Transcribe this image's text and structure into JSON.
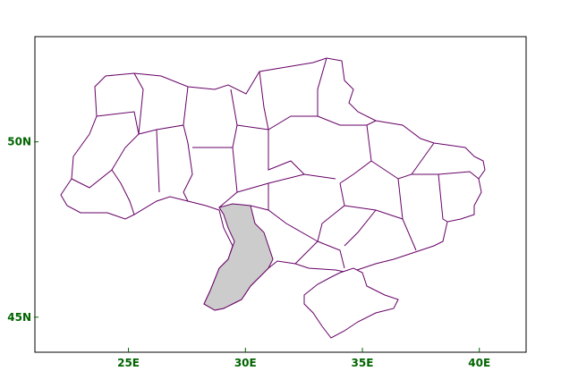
{
  "map": {
    "extent": {
      "lon": [
        21,
        42
      ],
      "lat": [
        44,
        53
      ]
    },
    "x_ticks": [
      {
        "lon": 25,
        "label": "25E"
      },
      {
        "lon": 30,
        "label": "30E"
      },
      {
        "lon": 35,
        "label": "35E"
      },
      {
        "lon": 40,
        "label": "40E"
      }
    ],
    "y_ticks": [
      {
        "lat": 50,
        "label": "50N"
      },
      {
        "lat": 45,
        "label": "45N"
      }
    ],
    "colors": {
      "boundary": "#660066",
      "highlight_fill": "#cccccc",
      "land_fill": "#ffffff",
      "tick_label": "#006400",
      "frame": "#000000"
    }
  }
}
